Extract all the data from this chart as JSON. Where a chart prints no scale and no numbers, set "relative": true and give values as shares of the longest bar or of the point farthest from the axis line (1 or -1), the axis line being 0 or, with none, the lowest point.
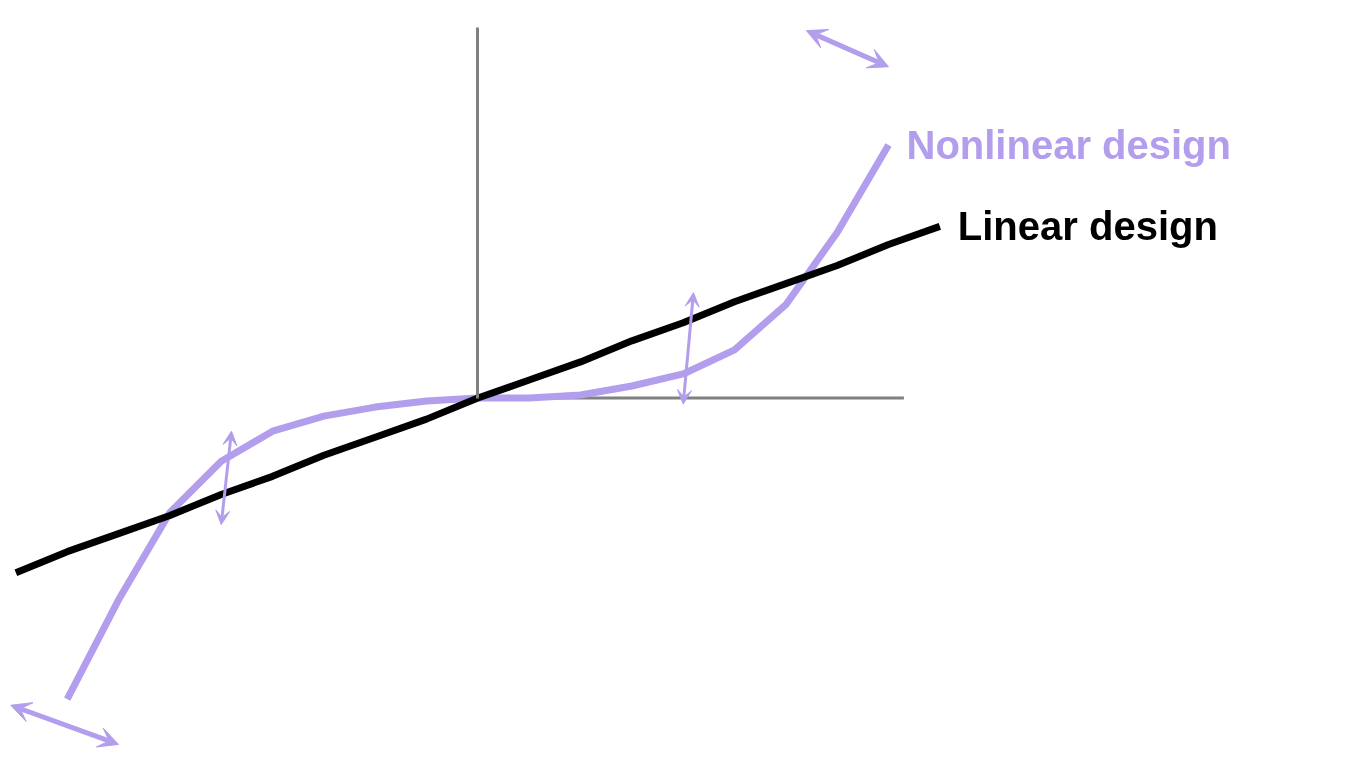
{
  "chart_data": {
    "type": "line",
    "relative": true,
    "ref_lines": [
      {
        "axis": "y",
        "value": 0,
        "color": "#808080"
      }
    ],
    "legend": false,
    "grid": false,
    "categories": [
      null,
      null,
      null,
      null,
      null,
      null,
      null,
      null,
      null,
      null,
      null,
      null,
      null,
      null,
      null,
      null,
      null,
      null,
      null
    ],
    "series": [
      {
        "name": "Nonlinear design",
        "color": "#b39ded",
        "values": [
          null,
          -1.0,
          -0.67,
          -0.38,
          -0.21,
          -0.11,
          -0.06,
          -0.03,
          -0.01,
          0,
          0,
          0.01,
          0.04,
          0.08,
          0.16,
          0.31,
          0.55,
          0.84,
          null
        ]
      },
      {
        "name": "Linear design",
        "color": "#000000",
        "values": [
          -0.58,
          -0.51,
          -0.45,
          -0.39,
          -0.32,
          -0.26,
          -0.19,
          -0.13,
          -0.07,
          0,
          0.06,
          0.12,
          0.19,
          0.25,
          0.32,
          0.38,
          0.44,
          0.51,
          0.57
        ]
      }
    ]
  }
}
